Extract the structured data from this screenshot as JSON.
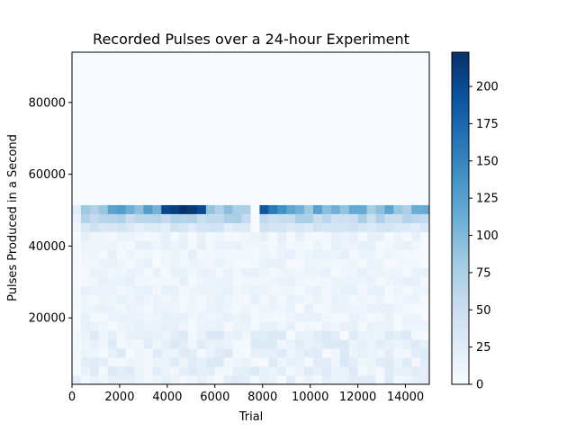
{
  "chart_data": {
    "type": "heatmap",
    "title": "Recorded Pulses over a 24-hour Experiment",
    "xlabel": "Trial",
    "ylabel": "Pulses Produced in a Second",
    "xlim": [
      0,
      15000
    ],
    "ylim": [
      1500,
      94000
    ],
    "xticks": [
      "0",
      "2000",
      "4000",
      "6000",
      "8000",
      "10000",
      "12000",
      "14000"
    ],
    "yticks": [
      "20000",
      "40000",
      "60000",
      "80000"
    ],
    "colorbar": {
      "min": 0,
      "max": 223,
      "ticks": [
        "0",
        "25",
        "50",
        "75",
        "100",
        "125",
        "150",
        "175",
        "200"
      ],
      "colormap": "Blues"
    },
    "bins": {
      "x_edges_start": 0,
      "x_bin_width": 375,
      "x_bin_count": 40,
      "y_edges_start": 1500,
      "y_bin_width": 2500,
      "y_bin_count": 37
    },
    "row_profiles": {
      "note_rows": "row index 0 = lowest y bin; values are counts per bin",
      "high_band": [
        205,
        210,
        222,
        215,
        200,
        190,
        160,
        140,
        120,
        110
      ],
      "high_band_cols": [
        10,
        11,
        12,
        13,
        14,
        21,
        22,
        23,
        24,
        25
      ],
      "zero_col": 20
    }
  }
}
